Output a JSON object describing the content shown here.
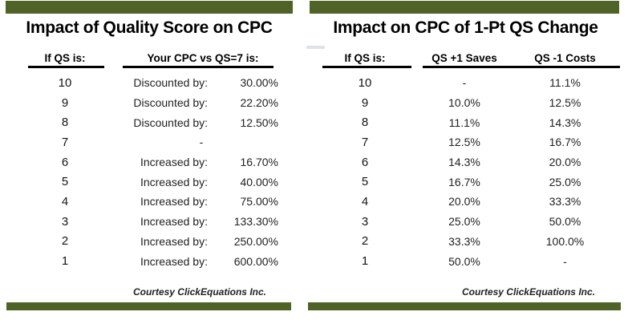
{
  "page": {
    "background_color": "#ffffff",
    "accent_color": "#4F6228",
    "text_color": "#1f1f1f"
  },
  "chart_data": [
    {
      "type": "table",
      "title": "Impact of Quality Score on CPC",
      "columns": [
        "If QS is:",
        "Your CPC vs QS=7 is:"
      ],
      "rows": [
        [
          "10",
          "Discounted by:",
          "30.00%"
        ],
        [
          "9",
          "Discounted by:",
          "22.20%"
        ],
        [
          "8",
          "Discounted by:",
          "12.50%"
        ],
        [
          "7",
          "-",
          ""
        ],
        [
          "6",
          "Increased by:",
          "16.70%"
        ],
        [
          "5",
          "Increased by:",
          "40.00%"
        ],
        [
          "4",
          "Increased by:",
          "75.00%"
        ],
        [
          "3",
          "Increased by:",
          "133.30%"
        ],
        [
          "2",
          "Increased by:",
          "250.00%"
        ],
        [
          "1",
          "Increased by:",
          "600.00%"
        ]
      ],
      "footnote": "Courtesy ClickEquations Inc."
    },
    {
      "type": "table",
      "title": "Impact on CPC of 1-Pt QS Change",
      "columns": [
        "If QS is:",
        "QS +1 Saves",
        "QS -1 Costs"
      ],
      "rows": [
        [
          "10",
          "-",
          "11.1%"
        ],
        [
          "9",
          "10.0%",
          "12.5%"
        ],
        [
          "8",
          "11.1%",
          "14.3%"
        ],
        [
          "7",
          "12.5%",
          "16.7%"
        ],
        [
          "6",
          "14.3%",
          "20.0%"
        ],
        [
          "5",
          "16.7%",
          "25.0%"
        ],
        [
          "4",
          "20.0%",
          "33.3%"
        ],
        [
          "3",
          "25.0%",
          "50.0%"
        ],
        [
          "2",
          "33.3%",
          "100.0%"
        ],
        [
          "1",
          "50.0%",
          "-"
        ]
      ],
      "footnote": "Courtesy ClickEquations Inc."
    }
  ]
}
